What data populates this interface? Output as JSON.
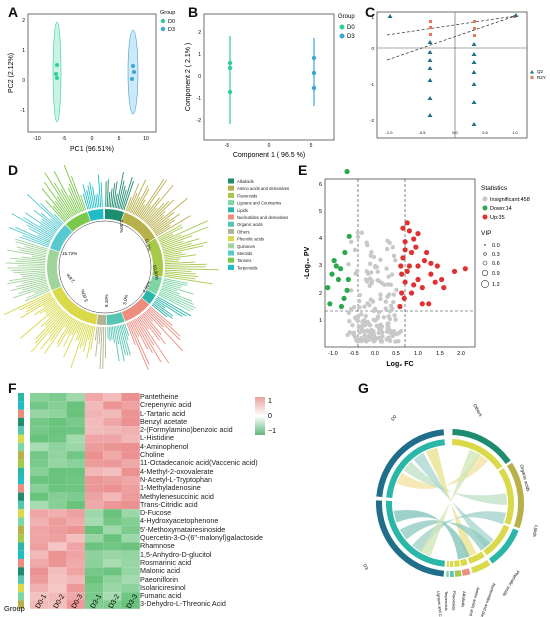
{
  "panels": {
    "A": "A",
    "B": "B",
    "C": "C",
    "D": "D",
    "E": "E",
    "F": "F",
    "G": "G"
  },
  "panel_a": {
    "xlabel": "PC1 (96.51%)",
    "ylabel": "PC2 (2.12%)",
    "legend_title": "Group",
    "legend_items": [
      "D0",
      "D3"
    ],
    "xticks": [
      "-10",
      "-5",
      "0",
      "5",
      "10"
    ],
    "yticks": [
      "-1",
      "0",
      "1",
      "2"
    ]
  },
  "panel_b": {
    "xlabel": "Component 1 ( 96.5 %)",
    "ylabel": "Component 2 ( 2.1% )",
    "legend_title": "Group",
    "legend_items": [
      "D0",
      "D3"
    ],
    "xticks": [
      "-5",
      "0",
      "5"
    ],
    "yticks": [
      "-2",
      "-1",
      "0",
      "1",
      "2"
    ]
  },
  "panel_c": {
    "legend_items": [
      "Q2",
      "R2Y"
    ],
    "xticks": [
      "-1.0",
      "-0.5",
      "0.0",
      "0.5",
      "1.0"
    ],
    "yticks": [
      "1",
      "0",
      "-1",
      "-2"
    ]
  },
  "panel_d": {
    "legend_items": [
      "Alkaloids",
      "Amino acids and derivatives",
      "Flavonoids",
      "Lignans and Coumarins",
      "Lipids",
      "Nucleotides and derivatives",
      "Organic acids",
      "Others",
      "Phenolic acids",
      "Quinones",
      "Steroids",
      "Tannins",
      "Terpenoids"
    ],
    "colors": [
      "#1e8c6e",
      "#b8b04a",
      "#a6c94a",
      "#7fd6a4",
      "#2bb7a8",
      "#ed8c7f",
      "#56c5b2",
      "#b3b393",
      "#d9d94a",
      "#a1d49a",
      "#58c9cf",
      "#7bc84a",
      "#1fbec7"
    ],
    "percentages": [
      "5.30%",
      "11.1%",
      "10.90%",
      "4.90%",
      "3.0%",
      "8.10%",
      "5.00%",
      "2.6%",
      "15.72%"
    ]
  },
  "panel_e": {
    "xlabel": "Log₂ FC",
    "ylabel": "-Log₁₀ PV",
    "legend_title": "Statistics",
    "stat_items": [
      "Insignificant:458",
      "Down:14",
      "Up:35"
    ],
    "stat_colors": [
      "#c8c8c8",
      "#2aa84a",
      "#e03030"
    ],
    "vip_title": "VIP",
    "vip_items": [
      "0.0",
      "0.3",
      "0.6",
      "0.9",
      "1.2"
    ],
    "xticks": [
      "-1.0",
      "-0.5",
      "0.0",
      "0.5",
      "1.0",
      "1.5",
      "2.0"
    ],
    "yticks": [
      "1",
      "2",
      "3",
      "4",
      "5",
      "6"
    ]
  },
  "panel_f": {
    "rows": [
      "Pantetheine",
      "Crepenynic acid",
      "L-Tartaric acid",
      "Benzyl acetate",
      "2-(Formylamino)benzoic acid",
      "L-Histidine",
      "4-Aminophenol",
      "Choline",
      "11-Octadecanoic acid(Vaccenic acid)",
      "4-Methyl-2-oxovalerate",
      "N-Acetyl-L-Tryptophan",
      "1-Methyladenosine",
      "Methylenesuccinic acid",
      "Trans-Citridic acid",
      "D-Fucose",
      "4-Hydroxyacetophenone",
      "5'-Methoxymatairesinoside",
      "Quercetin-3-O-(6''-malonyl)galactoside",
      "Rhamnose",
      "1,5-Anhydro-D-glucitol",
      "Rosmarinic acid",
      "Malonic acid",
      "Paeoniflorin",
      "Isolariciresinol",
      "Fumaric acid",
      "3-Dehydro-L-Threonic Acid"
    ],
    "columns": [
      "D0-1",
      "D0-2",
      "D0-3",
      "D3-1",
      "D3-2",
      "D3-3"
    ],
    "group_label": "Group",
    "scale_labels": [
      "1",
      "0",
      "−1"
    ]
  },
  "panel_g": {
    "labels": [
      "D0",
      "Others",
      "Organic acids",
      "Lipids",
      "Phenolic acids",
      "Nucleotides and derivatives",
      "Amino acids and derivatives",
      "Alkaloids",
      "Flavonoids",
      "Terpenoids",
      "Lignans and Coumarins",
      "D3"
    ]
  }
}
